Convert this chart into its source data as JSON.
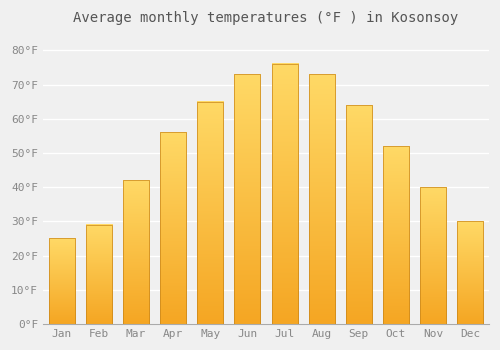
{
  "months": [
    "Jan",
    "Feb",
    "Mar",
    "Apr",
    "May",
    "Jun",
    "Jul",
    "Aug",
    "Sep",
    "Oct",
    "Nov",
    "Dec"
  ],
  "temps": [
    25,
    29,
    42,
    56,
    65,
    73,
    76,
    73,
    64,
    52,
    40,
    30
  ],
  "bar_color_bottom": "#F5A623",
  "bar_color_top": "#FFD966",
  "bar_edge_color": "#C8851A",
  "title": "Average monthly temperatures (°F ) in Kosonsoy",
  "ylim": [
    0,
    85
  ],
  "yticks": [
    0,
    10,
    20,
    30,
    40,
    50,
    60,
    70,
    80
  ],
  "ytick_labels": [
    "0°F",
    "10°F",
    "20°F",
    "30°F",
    "40°F",
    "50°F",
    "60°F",
    "70°F",
    "80°F"
  ],
  "background_color": "#f0f0f0",
  "grid_color": "#ffffff",
  "title_fontsize": 10,
  "tick_fontsize": 8,
  "font_family": "monospace",
  "bar_width": 0.7
}
